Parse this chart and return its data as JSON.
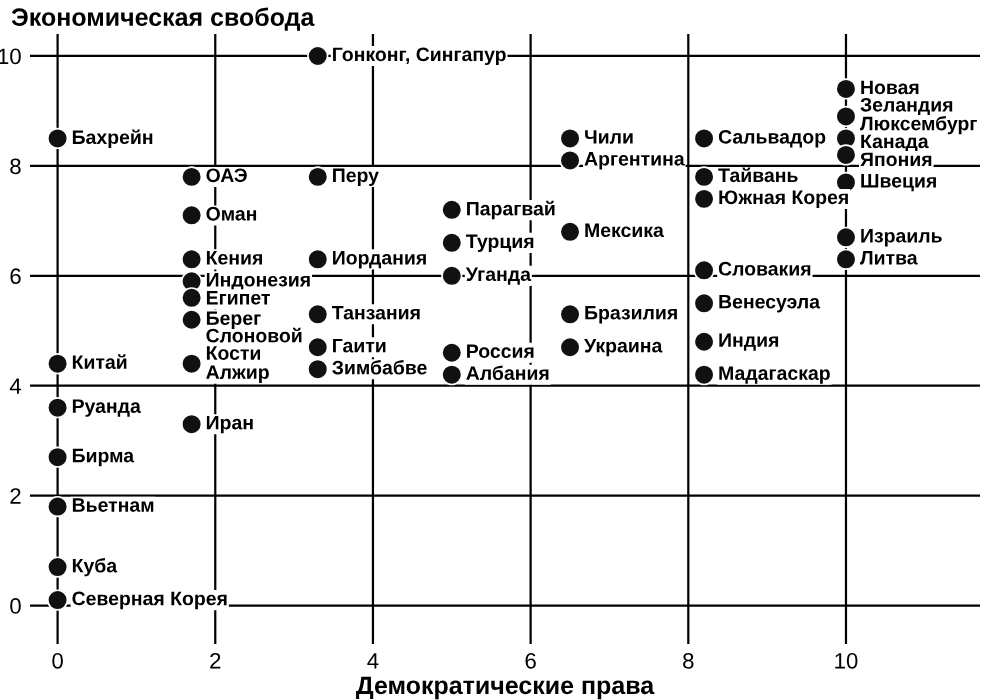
{
  "chart_data": {
    "type": "scatter",
    "ylabel": "Экономическая свобода",
    "xlabel": "Демократические права",
    "x": [
      0,
      0,
      0,
      0,
      0,
      0,
      0,
      1.7,
      1.7,
      1.7,
      1.7,
      1.7,
      1.7,
      1.7,
      1.7,
      3.3,
      3.3,
      3.3,
      3.3,
      3.3,
      3.3,
      5.0,
      5.0,
      5.0,
      5.0,
      5.0,
      6.5,
      6.5,
      6.5,
      6.5,
      6.5,
      8.2,
      8.2,
      8.2,
      8.2,
      8.2,
      8.2,
      8.2,
      10,
      10,
      10,
      10,
      10,
      10,
      10
    ],
    "series": [
      {
        "color": "#111111",
        "values": [
          8.5,
          4.4,
          3.6,
          2.7,
          1.8,
          0.7,
          0.1,
          7.8,
          7.1,
          6.3,
          5.9,
          5.6,
          5.2,
          4.4,
          3.3,
          10.0,
          7.8,
          6.3,
          5.3,
          4.7,
          4.3,
          7.2,
          6.6,
          6.0,
          4.6,
          4.2,
          8.5,
          8.1,
          6.8,
          5.3,
          4.7,
          8.5,
          7.8,
          7.4,
          6.1,
          5.5,
          4.8,
          4.2,
          9.4,
          8.9,
          8.5,
          8.2,
          7.7,
          6.7,
          6.3
        ]
      }
    ],
    "annotations": [
      {
        "text": "Бахрейн",
        "x": 0,
        "y": 8.5
      },
      {
        "text": "Китай",
        "x": 0,
        "y": 4.4
      },
      {
        "text": "Руанда",
        "x": 0,
        "y": 3.6
      },
      {
        "text": "Бирма",
        "x": 0,
        "y": 2.7
      },
      {
        "text": "Вьетнам",
        "x": 0,
        "y": 1.8
      },
      {
        "text": "Куба",
        "x": 0,
        "y": 0.7
      },
      {
        "text": "Северная Корея",
        "x": 0,
        "y": 0.1
      },
      {
        "text": "ОАЭ",
        "x": 1.7,
        "y": 7.8
      },
      {
        "text": "Оман",
        "x": 1.7,
        "y": 7.1
      },
      {
        "text": "Кения",
        "x": 1.7,
        "y": 6.3
      },
      {
        "text": "Индонезия",
        "x": 1.7,
        "y": 5.9
      },
      {
        "text": "Египет",
        "x": 1.7,
        "y": 5.6
      },
      {
        "text": "Берег\nСлоновой\nКости",
        "x": 1.7,
        "y": 5.2
      },
      {
        "text": "Алжир",
        "x": 1.7,
        "y": 4.4
      },
      {
        "text": "Иран",
        "x": 1.7,
        "y": 3.3
      },
      {
        "text": "Гонконг, Сингапур",
        "x": 3.3,
        "y": 10.0
      },
      {
        "text": "Перу",
        "x": 3.3,
        "y": 7.8
      },
      {
        "text": "Иордания",
        "x": 3.3,
        "y": 6.3
      },
      {
        "text": "Танзания",
        "x": 3.3,
        "y": 5.3
      },
      {
        "text": "Гаити",
        "x": 3.3,
        "y": 4.7
      },
      {
        "text": "Зимбабве",
        "x": 3.3,
        "y": 4.3
      },
      {
        "text": "Парагвай",
        "x": 5.0,
        "y": 7.2
      },
      {
        "text": "Турция",
        "x": 5.0,
        "y": 6.6
      },
      {
        "text": "Уганда",
        "x": 5.0,
        "y": 6.0
      },
      {
        "text": "Россия",
        "x": 5.0,
        "y": 4.6
      },
      {
        "text": "Албания",
        "x": 5.0,
        "y": 4.2
      },
      {
        "text": "Чили",
        "x": 6.5,
        "y": 8.5
      },
      {
        "text": "Аргентина",
        "x": 6.5,
        "y": 8.1
      },
      {
        "text": "Мексика",
        "x": 6.5,
        "y": 6.8
      },
      {
        "text": "Бразилия",
        "x": 6.5,
        "y": 5.3
      },
      {
        "text": "Украина",
        "x": 6.5,
        "y": 4.7
      },
      {
        "text": "Сальвадор",
        "x": 8.2,
        "y": 8.5
      },
      {
        "text": "Тайвань",
        "x": 8.2,
        "y": 7.8
      },
      {
        "text": "Южная Корея",
        "x": 8.2,
        "y": 7.4
      },
      {
        "text": "Словакия",
        "x": 8.2,
        "y": 6.1
      },
      {
        "text": "Венесуэла",
        "x": 8.2,
        "y": 5.5
      },
      {
        "text": "Индия",
        "x": 8.2,
        "y": 4.8
      },
      {
        "text": "Мадагаскар",
        "x": 8.2,
        "y": 4.2
      },
      {
        "text": "Новая\nЗеландия",
        "x": 10,
        "y": 9.4
      },
      {
        "text": "Люксембург",
        "x": 10,
        "y": 8.9
      },
      {
        "text": "Канада",
        "x": 10,
        "y": 8.5
      },
      {
        "text": "Япония",
        "x": 10,
        "y": 8.2
      },
      {
        "text": "Швеция",
        "x": 10,
        "y": 7.7
      },
      {
        "text": "Израиль",
        "x": 10,
        "y": 6.7
      },
      {
        "text": "Литва",
        "x": 10,
        "y": 6.3
      }
    ],
    "xlim": [
      -0.35,
      11.7
    ],
    "ylim": [
      -0.7,
      10.4
    ],
    "xticks": [
      0,
      2,
      4,
      6,
      8,
      10
    ],
    "yticks": [
      0,
      2,
      4,
      6,
      8,
      10
    ],
    "grid": true,
    "marker": "circle"
  }
}
